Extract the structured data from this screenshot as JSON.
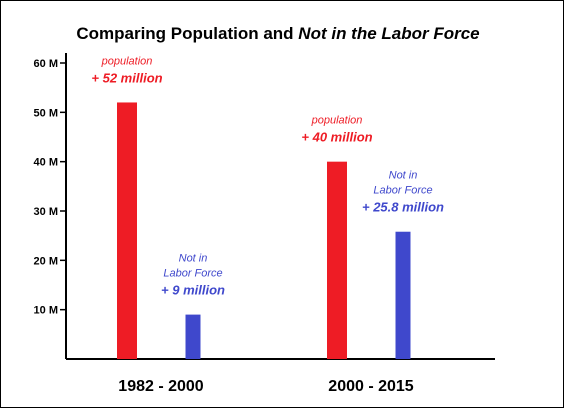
{
  "chart_data": {
    "type": "bar",
    "title_parts": [
      {
        "text": "Comparing Population and ",
        "italic": false
      },
      {
        "text": "Not in the Labor Force",
        "italic": true
      }
    ],
    "title": "Comparing Population and Not in the Labor Force",
    "categories": [
      "1982 - 2000",
      "2000 - 2015"
    ],
    "ylim": [
      0,
      60
    ],
    "yticks": [
      {
        "value": 10,
        "label": "10 M"
      },
      {
        "value": 20,
        "label": "20 M"
      },
      {
        "value": 30,
        "label": "30 M"
      },
      {
        "value": 40,
        "label": "40 M"
      },
      {
        "value": 50,
        "label": "50 M"
      },
      {
        "value": 60,
        "label": "60 M"
      }
    ],
    "grid": false,
    "legend": "none",
    "series": [
      {
        "color": "#ee1c25",
        "values": [
          52,
          40
        ],
        "annotations": [
          {
            "lines": [
              "population"
            ],
            "value_label": "+ 52 million"
          },
          {
            "lines": [
              "population"
            ],
            "value_label": "+ 40 million"
          }
        ]
      },
      {
        "color": "#3f48cc",
        "values": [
          9,
          25.8
        ],
        "annotations": [
          {
            "lines": [
              "Not in",
              "Labor Force"
            ],
            "value_label": "+ 9 million"
          },
          {
            "lines": [
              "Not in",
              "Labor Force"
            ],
            "value_label": "+ 25.8 million"
          }
        ]
      }
    ]
  }
}
